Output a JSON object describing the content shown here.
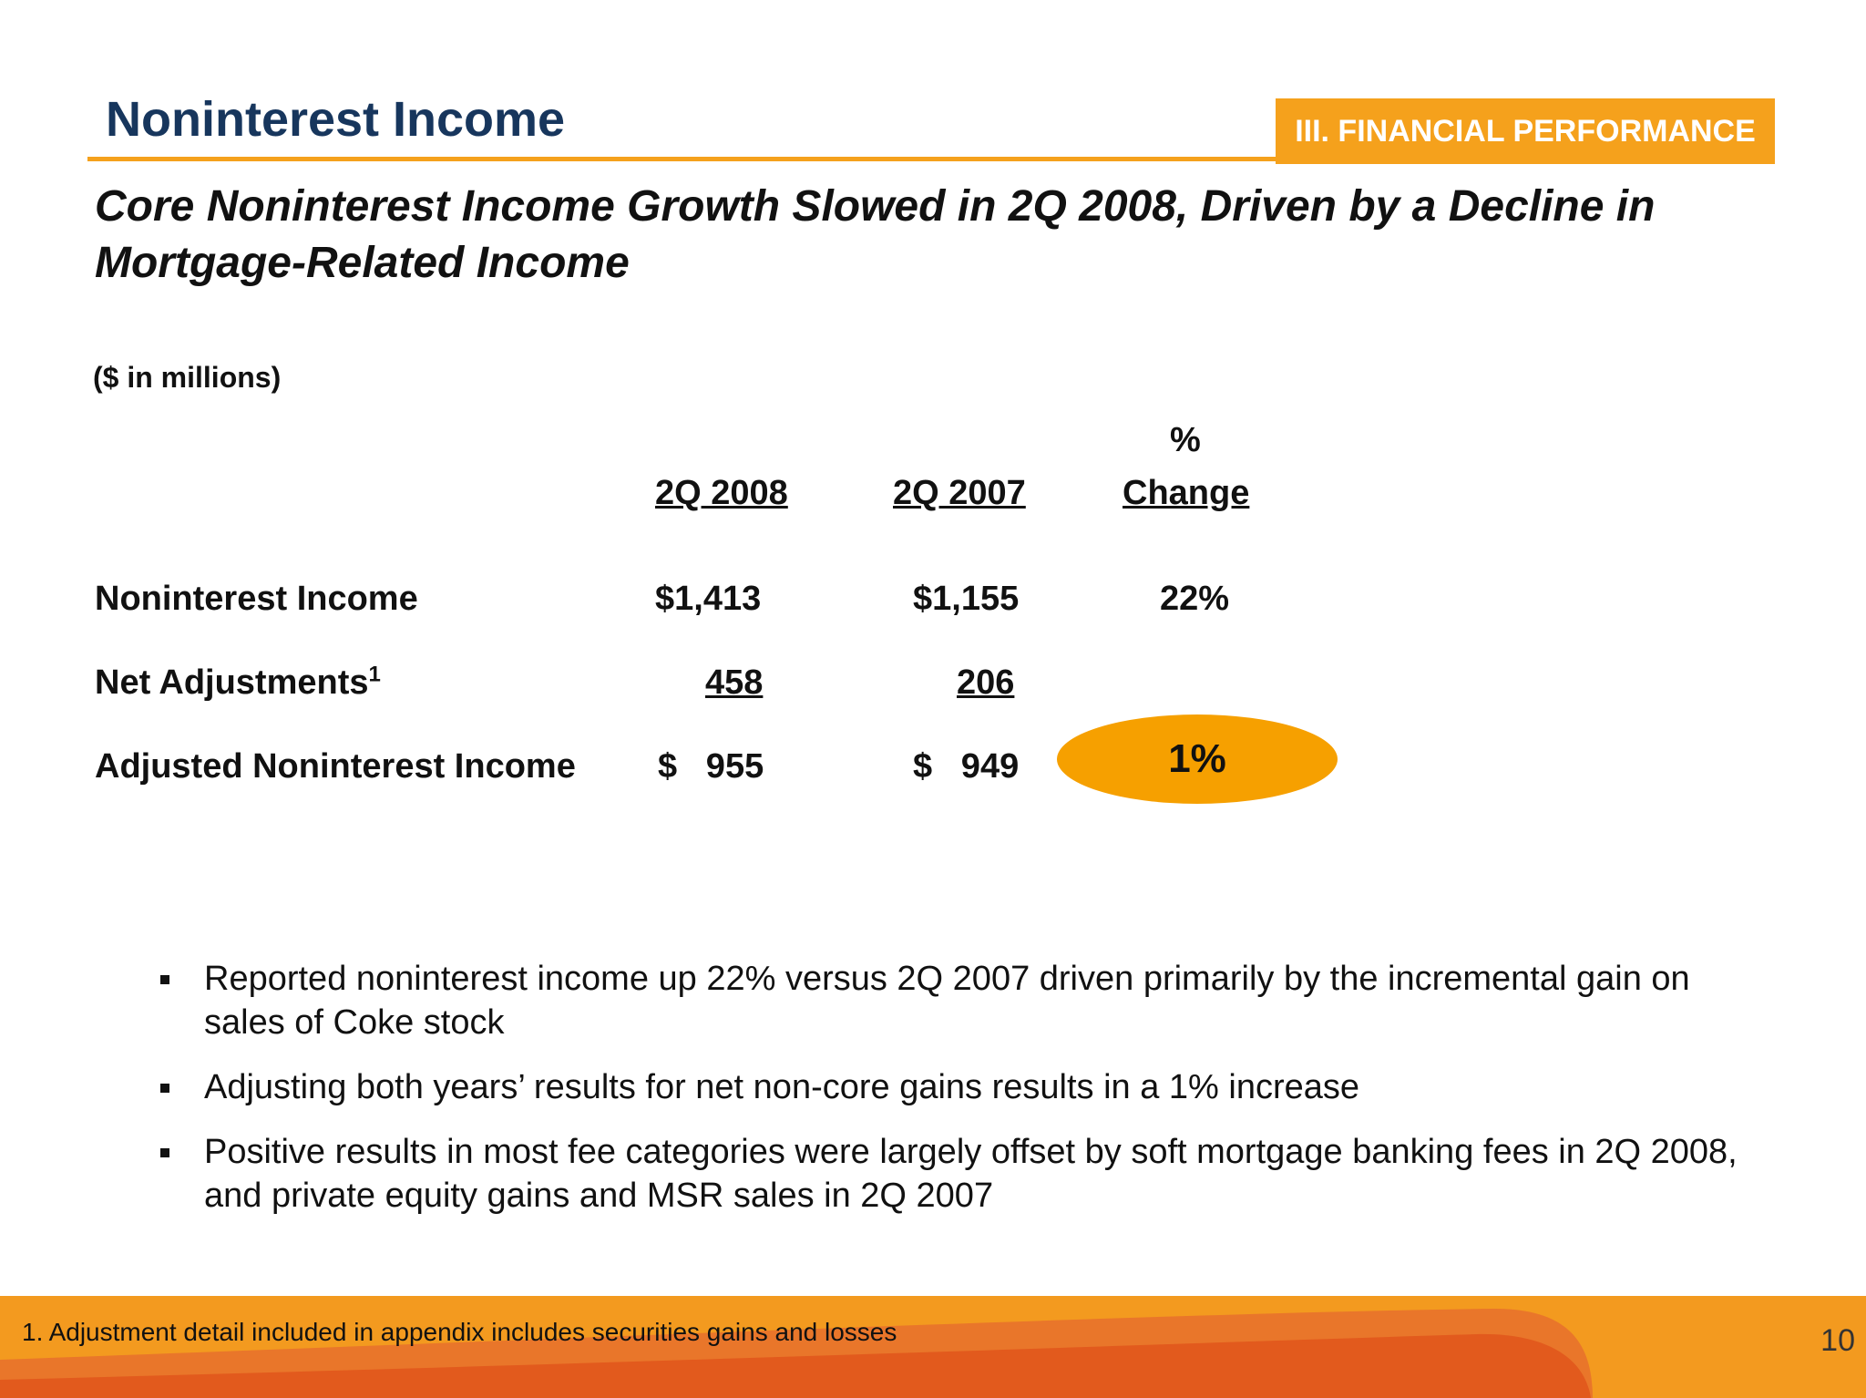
{
  "header": {
    "title": "Noninterest Income",
    "section_badge": "III. FINANCIAL PERFORMANCE"
  },
  "subtitle": "Core Noninterest Income Growth Slowed in 2Q 2008, Driven by a Decline in Mortgage-Related Income",
  "units_note": "($ in millions)",
  "table": {
    "headers": {
      "col1": "2Q 2008",
      "col2": "2Q 2007",
      "col3_top": "%",
      "col3": "Change"
    },
    "rows": [
      {
        "label": "Noninterest Income",
        "v2008": "$1,413",
        "v2007": "$1,155",
        "change": "22%"
      },
      {
        "label": "Net Adjustments",
        "sup": "1",
        "v2008": "458",
        "v2007": "206",
        "change": ""
      },
      {
        "label": "Adjusted Noninterest Income",
        "v2008": "$   955",
        "v2007": "$   949",
        "change": "1%"
      }
    ]
  },
  "colors": {
    "accent_orange": "#f5a11c",
    "title_navy": "#17365d",
    "highlight": "#f6a000"
  },
  "bullets": [
    "Reported noninterest income up 22% versus 2Q 2007 driven primarily by the incremental gain on sales of Coke stock",
    "Adjusting both years’ results for net non-core gains results in a 1% increase",
    "Positive results in most fee categories were largely offset by soft mortgage banking fees in 2Q 2008, and private equity gains and MSR sales in 2Q 2007"
  ],
  "footer": {
    "footnote": "1.  Adjustment detail included in appendix includes securities gains and losses",
    "page_number": "10"
  }
}
